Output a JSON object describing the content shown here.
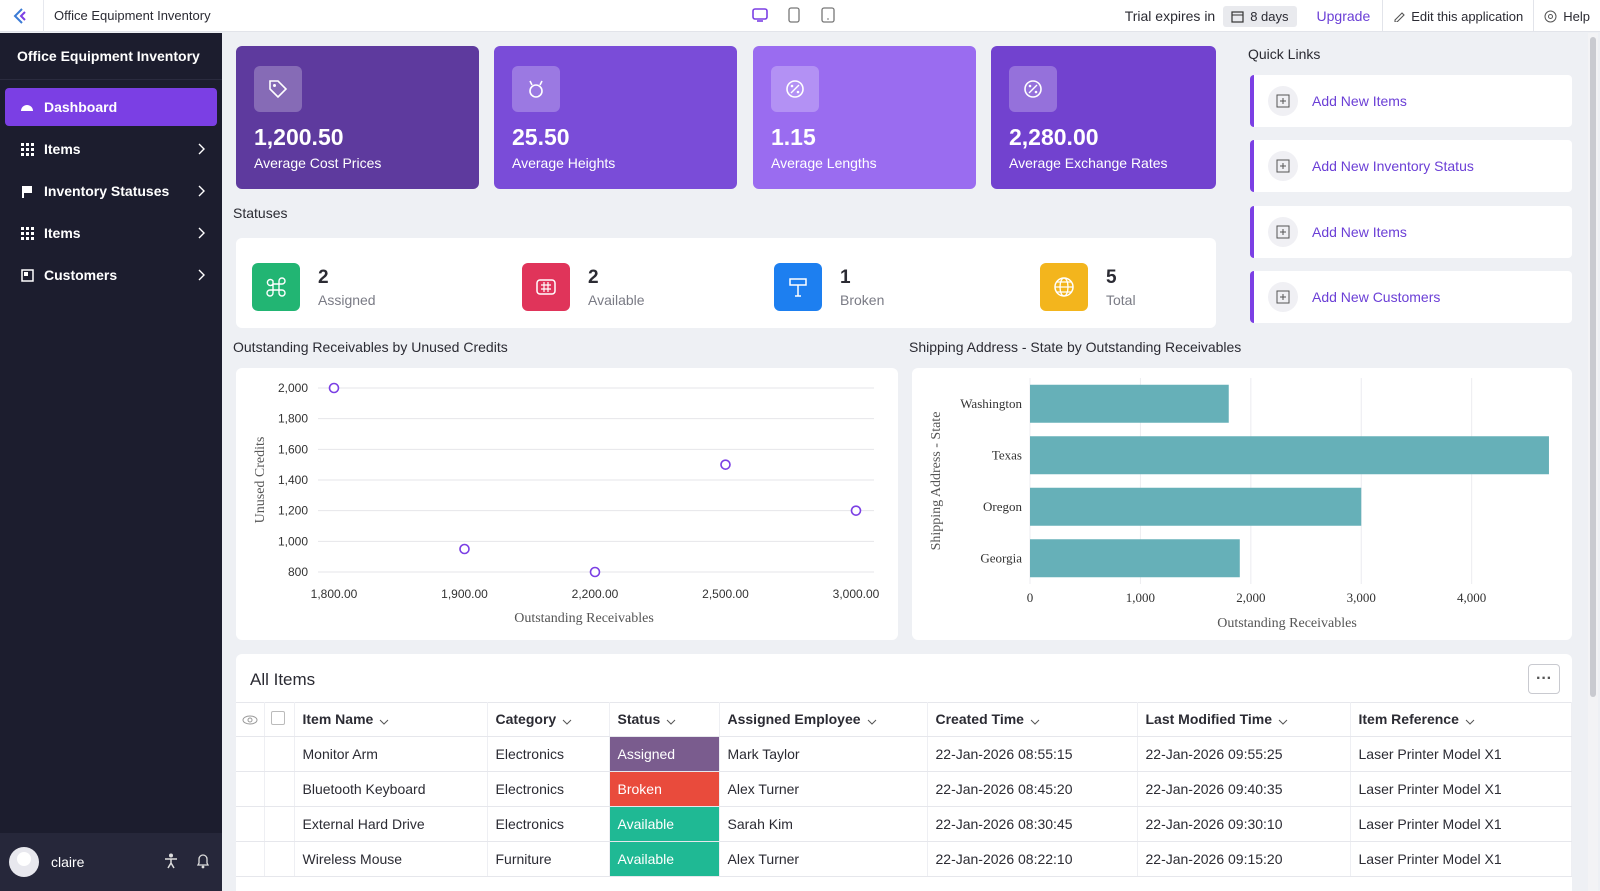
{
  "topbar": {
    "app_title": "Office Equipment Inventory",
    "trial_text": "Trial expires in",
    "trial_days": "8 days",
    "upgrade": "Upgrade",
    "edit": "Edit this application",
    "help": "Help"
  },
  "sidebar": {
    "title": "Office Equipment Inventory",
    "items": [
      {
        "label": "Dashboard",
        "icon": "dashboard-icon",
        "active": true
      },
      {
        "label": "Items",
        "icon": "grid-icon"
      },
      {
        "label": "Inventory Statuses",
        "icon": "flag-icon"
      },
      {
        "label": "Items",
        "icon": "grid-icon"
      },
      {
        "label": "Customers",
        "icon": "customers-icon"
      }
    ],
    "user": "claire"
  },
  "kpis": [
    {
      "value": "1,200.50",
      "label": "Average Cost Prices",
      "color": "#5e3a9e",
      "icon": "tag-icon"
    },
    {
      "value": "25.50",
      "label": "Average Heights",
      "color": "#7a4cd8",
      "icon": "drops-icon"
    },
    {
      "value": "1.15",
      "label": "Average Lengths",
      "color": "#9a6cf0",
      "icon": "percent-icon"
    },
    {
      "value": "2,280.00",
      "label": "Average Exchange Rates",
      "color": "#7242cf",
      "icon": "percent-icon"
    }
  ],
  "statuses": {
    "title": "Statuses",
    "items": [
      {
        "value": "2",
        "label": "Assigned",
        "color": "#22b573",
        "icon": "command-icon"
      },
      {
        "value": "2",
        "label": "Available",
        "color": "#e0345a",
        "icon": "grid-box-icon"
      },
      {
        "value": "1",
        "label": "Broken",
        "color": "#1d7ff0",
        "icon": "signpost-icon"
      },
      {
        "value": "5",
        "label": "Total",
        "color": "#f3b51d",
        "icon": "globe-icon"
      }
    ]
  },
  "quick_links": {
    "title": "Quick Links",
    "items": [
      "Add New Items",
      "Add New Inventory Status",
      "Add New Items",
      "Add New Customers"
    ]
  },
  "scatter_title": "Outstanding Receivables by Unused Credits",
  "bar_title": "Shipping Address - State by Outstanding Receivables",
  "chart_data": [
    {
      "type": "scatter",
      "title": "Outstanding Receivables by Unused Credits",
      "xlabel": "Outstanding Receivables",
      "ylabel": "Unused Credits",
      "x_ticks": [
        "1,800.00",
        "1,900.00",
        "2,200.00",
        "2,500.00",
        "3,000.00"
      ],
      "y_ticks": [
        "800",
        "1,000",
        "1,200",
        "1,400",
        "1,600",
        "1,800",
        "2,000"
      ],
      "ylim": [
        800,
        2000
      ],
      "points": [
        {
          "x": "1,800.00",
          "y": 2000
        },
        {
          "x": "1,900.00",
          "y": 950
        },
        {
          "x": "2,200.00",
          "y": 800
        },
        {
          "x": "2,500.00",
          "y": 1500
        },
        {
          "x": "3,000.00",
          "y": 1200
        }
      ],
      "color": "#7b3fe4"
    },
    {
      "type": "bar",
      "orientation": "horizontal",
      "title": "Shipping Address - State by Outstanding Receivables",
      "xlabel": "Outstanding Receivables",
      "ylabel": "Shipping Address - State",
      "categories": [
        "Washington",
        "Texas",
        "Oregon",
        "Georgia"
      ],
      "values": [
        1800,
        4700,
        3000,
        1900
      ],
      "x_ticks": [
        "0",
        "1,000",
        "2,000",
        "3,000",
        "4,000"
      ],
      "xlim": [
        0,
        4800
      ],
      "color": "#66b0b8"
    }
  ],
  "table": {
    "title": "All Items",
    "columns": [
      "Item Name",
      "Category",
      "Status",
      "Assigned Employee",
      "Created Time",
      "Last Modified Time",
      "Item Reference"
    ],
    "rows": [
      [
        "Monitor Arm",
        "Electronics",
        "Assigned",
        "Mark Taylor",
        "22-Jan-2026 08:55:15",
        "22-Jan-2026 09:55:25",
        "Laser Printer Model X1"
      ],
      [
        "Bluetooth Keyboard",
        "Electronics",
        "Broken",
        "Alex Turner",
        "22-Jan-2026 08:45:20",
        "22-Jan-2026 09:40:35",
        "Laser Printer Model X1"
      ],
      [
        "External Hard Drive",
        "Electronics",
        "Available",
        "Sarah Kim",
        "22-Jan-2026 08:30:45",
        "22-Jan-2026 09:30:10",
        "Laser Printer Model X1"
      ],
      [
        "Wireless Mouse",
        "Furniture",
        "Available",
        "Alex Turner",
        "22-Jan-2026 08:22:10",
        "22-Jan-2026 09:15:20",
        "Laser Printer Model X1"
      ]
    ],
    "status_colors": {
      "Assigned": "#7a5c8e",
      "Broken": "#e94b3c",
      "Available": "#1fb994"
    }
  }
}
